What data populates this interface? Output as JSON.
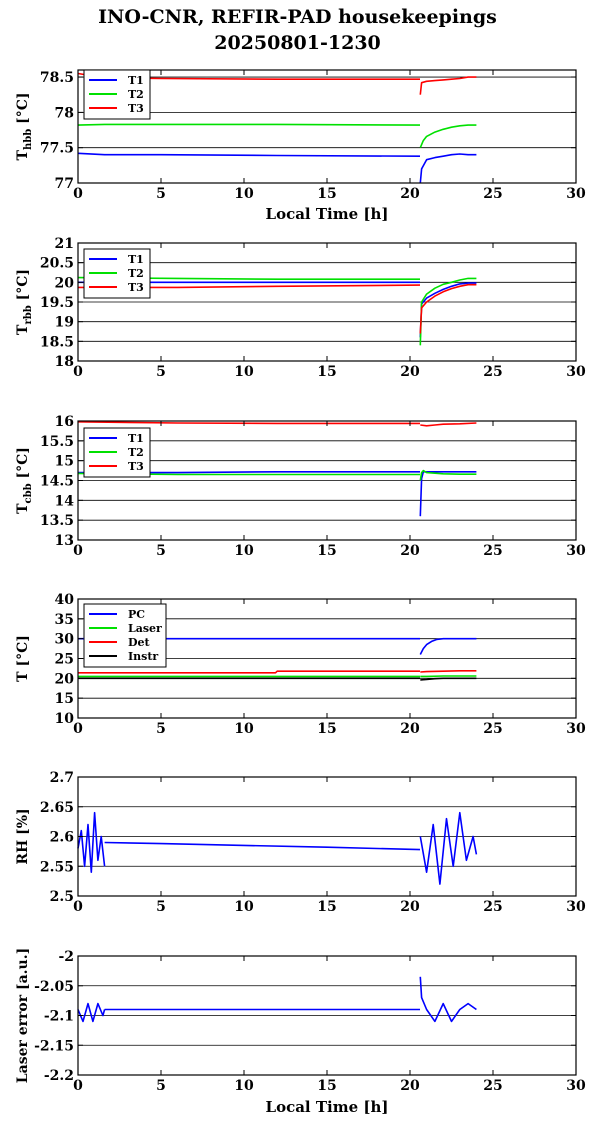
{
  "title_line1": "INO-CNR, REFIR-PAD housekeepings",
  "title_line2": "20250801-1230",
  "charts": [
    {
      "ylabel_main": "T",
      "ylabel_sub": "hbb",
      "ylabel_tail": " [°C]",
      "yticks": [
        "77",
        "77.5",
        "78",
        "78.5"
      ],
      "legend": [
        "T1",
        "T2",
        "T3"
      ]
    },
    {
      "ylabel_main": "T",
      "ylabel_sub": "rbb",
      "ylabel_tail": " [°C]",
      "yticks": [
        "18",
        "18.5",
        "19",
        "19.5",
        "20",
        "20.5",
        "21"
      ],
      "legend": [
        "T1",
        "T2",
        "T3"
      ]
    },
    {
      "ylabel_main": "T",
      "ylabel_sub": "cbb",
      "ylabel_tail": " [°C]",
      "yticks": [
        "13",
        "13.5",
        "14",
        "14.5",
        "15",
        "15.5",
        "16"
      ],
      "legend": [
        "T1",
        "T2",
        "T3"
      ]
    },
    {
      "ylabel_main": "T [°C]",
      "ylabel_sub": "",
      "ylabel_tail": "",
      "yticks": [
        "10",
        "15",
        "20",
        "25",
        "30",
        "35",
        "40"
      ],
      "legend": [
        "PC",
        "Laser",
        "Det",
        "Instr"
      ]
    },
    {
      "ylabel_main": "RH [%]",
      "ylabel_sub": "",
      "ylabel_tail": "",
      "yticks": [
        "2.5",
        "2.55",
        "2.6",
        "2.65",
        "2.7"
      ],
      "legend": []
    },
    {
      "ylabel_main": "Laser error [a.u.]",
      "ylabel_sub": "",
      "ylabel_tail": "",
      "yticks": [
        "-2.2",
        "-2.15",
        "-2.1",
        "-2.05",
        "-2"
      ],
      "legend": []
    }
  ],
  "chart_data": [
    {
      "type": "line",
      "xlabel": "Local Time [h]",
      "ylabel": "Thbb [°C]",
      "xlim": [
        0,
        30
      ],
      "ylim": [
        77,
        78.6
      ],
      "xticks": [
        0,
        5,
        10,
        15,
        20,
        25,
        30
      ],
      "yticks": [
        77,
        77.5,
        78,
        78.5
      ],
      "grid": true,
      "legend_position": "top-left",
      "colors": [
        "#0000ff",
        "#00e000",
        "#ff0000"
      ],
      "series": [
        {
          "name": "T1",
          "color": "#0000ff",
          "segments": [
            {
              "x": [
                0,
                1.6,
                5,
                12,
                20.6
              ],
              "y": [
                77.42,
                77.4,
                77.4,
                77.39,
                77.38
              ]
            },
            {
              "x": [
                20.62,
                20.7,
                21,
                21.5,
                22,
                22.5,
                23,
                23.5,
                24
              ],
              "y": [
                77.0,
                77.2,
                77.33,
                77.36,
                77.38,
                77.4,
                77.41,
                77.4,
                77.4
              ]
            }
          ]
        },
        {
          "name": "T2",
          "color": "#00e000",
          "segments": [
            {
              "x": [
                0,
                1.6,
                5,
                12,
                20.6
              ],
              "y": [
                77.82,
                77.83,
                77.83,
                77.83,
                77.82
              ]
            },
            {
              "x": [
                20.62,
                20.8,
                21,
                21.5,
                22,
                22.5,
                23,
                23.5,
                24
              ],
              "y": [
                77.5,
                77.6,
                77.66,
                77.72,
                77.76,
                77.79,
                77.81,
                77.82,
                77.82
              ]
            }
          ]
        },
        {
          "name": "T3",
          "color": "#ff0000",
          "segments": [
            {
              "x": [
                0,
                1.6,
                5,
                12,
                20.6
              ],
              "y": [
                78.55,
                78.49,
                78.48,
                78.47,
                78.47
              ]
            },
            {
              "x": [
                20.62,
                20.7,
                21,
                21.5,
                22,
                22.5,
                23,
                23.5,
                24
              ],
              "y": [
                78.25,
                78.42,
                78.44,
                78.45,
                78.46,
                78.47,
                78.48,
                78.5,
                78.5
              ]
            }
          ]
        }
      ]
    },
    {
      "type": "line",
      "xlabel": "",
      "ylabel": "Trbb [°C]",
      "xlim": [
        0,
        30
      ],
      "ylim": [
        18,
        21
      ],
      "xticks": [
        0,
        5,
        10,
        15,
        20,
        25,
        30
      ],
      "yticks": [
        18,
        18.5,
        19,
        19.5,
        20,
        20.5,
        21
      ],
      "grid": true,
      "legend_position": "top-left",
      "colors": [
        "#0000ff",
        "#00e000",
        "#ff0000"
      ],
      "series": [
        {
          "name": "T1",
          "color": "#0000ff",
          "segments": [
            {
              "x": [
                0,
                6,
                12,
                20.6
              ],
              "y": [
                20.0,
                20.0,
                20.0,
                20.0
              ]
            },
            {
              "x": [
                20.62,
                20.7,
                21,
                21.5,
                22,
                22.5,
                23,
                23.5,
                24
              ],
              "y": [
                18.6,
                19.45,
                19.6,
                19.72,
                19.82,
                19.9,
                19.96,
                19.98,
                19.98
              ]
            }
          ]
        },
        {
          "name": "T2",
          "color": "#00e000",
          "segments": [
            {
              "x": [
                0,
                6,
                12,
                20.6
              ],
              "y": [
                20.12,
                20.1,
                20.08,
                20.08
              ]
            },
            {
              "x": [
                20.62,
                20.7,
                21,
                21.5,
                22,
                22.5,
                23,
                23.5,
                24
              ],
              "y": [
                18.4,
                19.5,
                19.7,
                19.85,
                19.95,
                20.0,
                20.06,
                20.1,
                20.1
              ]
            }
          ]
        },
        {
          "name": "T3",
          "color": "#ff0000",
          "segments": [
            {
              "x": [
                0,
                6,
                12,
                20.6
              ],
              "y": [
                19.87,
                19.87,
                19.9,
                19.93
              ]
            },
            {
              "x": [
                20.62,
                20.7,
                21,
                21.5,
                22,
                22.5,
                23,
                23.5,
                24
              ],
              "y": [
                18.7,
                19.35,
                19.5,
                19.65,
                19.76,
                19.84,
                19.9,
                19.94,
                19.94
              ]
            }
          ]
        }
      ]
    },
    {
      "type": "line",
      "xlabel": "",
      "ylabel": "Tcbb [°C]",
      "xlim": [
        0,
        30
      ],
      "ylim": [
        13,
        16
      ],
      "xticks": [
        0,
        5,
        10,
        15,
        20,
        25,
        30
      ],
      "yticks": [
        13,
        13.5,
        14,
        14.5,
        15,
        15.5,
        16
      ],
      "grid": true,
      "legend_position": "top-left",
      "colors": [
        "#0000ff",
        "#00e000",
        "#ff0000"
      ],
      "series": [
        {
          "name": "T1",
          "color": "#0000ff",
          "segments": [
            {
              "x": [
                0,
                6,
                12,
                20.6
              ],
              "y": [
                14.7,
                14.7,
                14.72,
                14.72
              ]
            },
            {
              "x": [
                20.62,
                20.7,
                20.8,
                21,
                22,
                23,
                24
              ],
              "y": [
                13.6,
                14.55,
                14.72,
                14.72,
                14.72,
                14.72,
                14.72
              ]
            }
          ]
        },
        {
          "name": "T2",
          "color": "#00e000",
          "segments": [
            {
              "x": [
                0,
                6,
                12,
                20.6
              ],
              "y": [
                14.68,
                14.65,
                14.65,
                14.65
              ]
            },
            {
              "x": [
                20.62,
                20.7,
                20.8,
                21,
                22,
                23,
                24
              ],
              "y": [
                14.5,
                14.7,
                14.75,
                14.7,
                14.67,
                14.66,
                14.66
              ]
            }
          ]
        },
        {
          "name": "T3",
          "color": "#ff0000",
          "segments": [
            {
              "x": [
                0,
                6,
                12,
                20.6
              ],
              "y": [
                15.98,
                15.95,
                15.94,
                15.94
              ]
            },
            {
              "x": [
                20.62,
                21,
                21.5,
                22,
                23,
                24
              ],
              "y": [
                15.9,
                15.88,
                15.9,
                15.92,
                15.93,
                15.95
              ]
            }
          ]
        }
      ]
    },
    {
      "type": "line",
      "xlabel": "",
      "ylabel": "T [°C]",
      "xlim": [
        0,
        30
      ],
      "ylim": [
        10,
        40
      ],
      "xticks": [
        0,
        5,
        10,
        15,
        20,
        25,
        30
      ],
      "yticks": [
        10,
        15,
        20,
        25,
        30,
        35,
        40
      ],
      "grid": true,
      "legend_position": "top-left",
      "colors": [
        "#0000ff",
        "#00e000",
        "#ff0000",
        "#000000"
      ],
      "series": [
        {
          "name": "PC",
          "color": "#0000ff",
          "segments": [
            {
              "x": [
                0,
                12,
                20.6
              ],
              "y": [
                30,
                30,
                30
              ]
            },
            {
              "x": [
                20.62,
                20.8,
                21,
                21.3,
                21.6,
                22,
                23,
                24
              ],
              "y": [
                26,
                27.5,
                28.5,
                29.3,
                29.8,
                30,
                30,
                30
              ]
            }
          ]
        },
        {
          "name": "Laser",
          "color": "#00e000",
          "segments": [
            {
              "x": [
                0,
                12,
                20.6
              ],
              "y": [
                20.5,
                20.5,
                20.5
              ]
            },
            {
              "x": [
                20.62,
                21,
                22,
                23,
                24
              ],
              "y": [
                20.5,
                20.5,
                20.6,
                20.6,
                20.6
              ]
            }
          ]
        },
        {
          "name": "Det",
          "color": "#ff0000",
          "segments": [
            {
              "x": [
                0,
                11.9,
                12,
                20.6
              ],
              "y": [
                21.4,
                21.4,
                21.8,
                21.8
              ]
            },
            {
              "x": [
                20.62,
                21,
                22,
                23,
                24
              ],
              "y": [
                21.6,
                21.7,
                21.8,
                21.9,
                21.9
              ]
            }
          ]
        },
        {
          "name": "Instr",
          "color": "#000000",
          "segments": [
            {
              "x": [
                0,
                12,
                20.6
              ],
              "y": [
                20,
                20,
                20
              ]
            },
            {
              "x": [
                20.62,
                21,
                21.5,
                22,
                23,
                24
              ],
              "y": [
                19.6,
                19.7,
                19.9,
                20,
                20,
                20
              ]
            }
          ]
        }
      ]
    },
    {
      "type": "line",
      "xlabel": "",
      "ylabel": "RH [%]",
      "xlim": [
        0,
        30
      ],
      "ylim": [
        2.5,
        2.7
      ],
      "xticks": [
        0,
        5,
        10,
        15,
        20,
        25,
        30
      ],
      "yticks": [
        2.5,
        2.55,
        2.6,
        2.65,
        2.7
      ],
      "grid": true,
      "colors": [
        "#0000ff"
      ],
      "series": [
        {
          "name": "",
          "color": "#0000ff",
          "segments": [
            {
              "x": [
                0,
                0.2,
                0.4,
                0.6,
                0.8,
                1.0,
                1.2,
                1.4,
                1.6
              ],
              "y": [
                2.58,
                2.61,
                2.55,
                2.62,
                2.54,
                2.64,
                2.56,
                2.6,
                2.55
              ]
            },
            {
              "x": [
                1.6,
                5,
                10,
                15,
                20.6
              ],
              "y": [
                2.59,
                2.588,
                2.585,
                2.582,
                2.578
              ]
            },
            {
              "x": [
                20.62,
                21,
                21.4,
                21.8,
                22.2,
                22.6,
                23.0,
                23.4,
                23.8,
                24
              ],
              "y": [
                2.6,
                2.54,
                2.62,
                2.52,
                2.63,
                2.55,
                2.64,
                2.56,
                2.6,
                2.57
              ]
            }
          ]
        }
      ]
    },
    {
      "type": "line",
      "xlabel": "Local Time [h]",
      "ylabel": "Laser error [a.u.]",
      "xlim": [
        0,
        30
      ],
      "ylim": [
        -2.2,
        -2.0
      ],
      "xticks": [
        0,
        5,
        10,
        15,
        20,
        25,
        30
      ],
      "yticks": [
        -2.2,
        -2.15,
        -2.1,
        -2.05,
        -2.0
      ],
      "grid": true,
      "colors": [
        "#0000ff"
      ],
      "series": [
        {
          "name": "",
          "color": "#0000ff",
          "segments": [
            {
              "x": [
                0,
                0.3,
                0.6,
                0.9,
                1.2,
                1.5,
                1.6
              ],
              "y": [
                -2.09,
                -2.11,
                -2.08,
                -2.11,
                -2.08,
                -2.1,
                -2.09
              ]
            },
            {
              "x": [
                1.6,
                5,
                10,
                15,
                20.6
              ],
              "y": [
                -2.09,
                -2.09,
                -2.09,
                -2.09,
                -2.09
              ]
            },
            {
              "x": [
                20.62,
                20.7,
                21,
                21.5,
                22,
                22.5,
                23,
                23.5,
                24
              ],
              "y": [
                -2.035,
                -2.07,
                -2.09,
                -2.11,
                -2.08,
                -2.11,
                -2.09,
                -2.08,
                -2.09
              ]
            }
          ]
        }
      ]
    }
  ]
}
